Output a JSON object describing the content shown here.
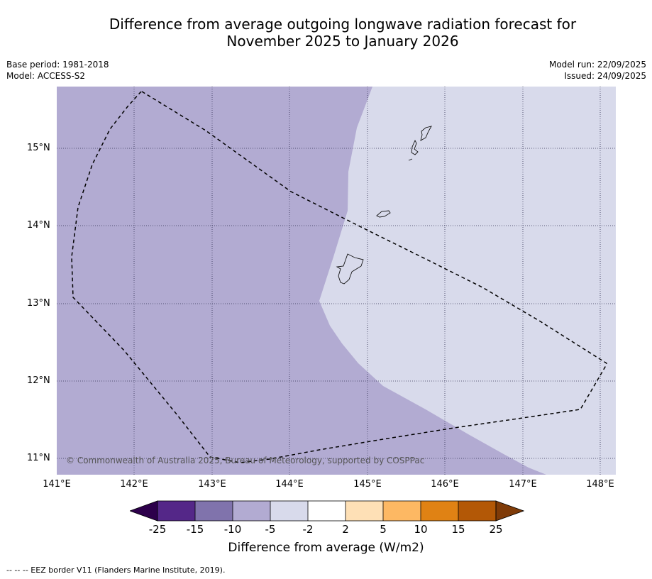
{
  "title_line1": "Difference from average outgoing longwave radiation forecast for",
  "title_line2": "November 2025 to January 2026",
  "meta": {
    "base_period": "Base period: 1981-2018",
    "model": "Model: ACCESS-S2",
    "model_run": "Model run: 22/09/2025",
    "issued": "Issued: 24/09/2025"
  },
  "map": {
    "lon_range": [
      141,
      148.2
    ],
    "lat_range": [
      10.8,
      15.8
    ],
    "lat_labels": [
      "15°N",
      "14°N",
      "13°N",
      "12°N",
      "11°N"
    ],
    "lon_labels": [
      "141°E",
      "142°E",
      "143°E",
      "144°E",
      "145°E",
      "146°E",
      "147°E",
      "148°E"
    ],
    "copyright": "© Commonwealth of Australia 2025, Bureau of Meteorology, supported by COSPPac"
  },
  "colorbar": {
    "ticks": [
      "-25",
      "-15",
      "-10",
      "-5",
      "-2",
      "2",
      "5",
      "10",
      "15",
      "25"
    ],
    "colors": {
      "below": "#2d004b",
      "bins": [
        "#542788",
        "#8073ac",
        "#b2abd2",
        "#d8daeb",
        "#ffffff",
        "#fee0b6",
        "#fdb863",
        "#e08214",
        "#b35806"
      ],
      "above": "#7f3b08"
    },
    "label": "Difference from average (W/m2)"
  },
  "footer": "--  --  -- EEZ border V11 (Flanders Marine Institute, 2019)."
}
